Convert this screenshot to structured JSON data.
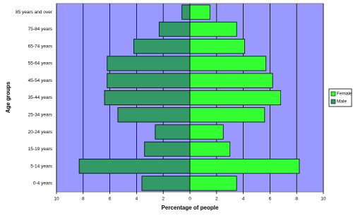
{
  "chart_data": {
    "type": "pyramid",
    "y_label": "Age groups",
    "x_label": "Percentage of people",
    "categories": [
      "85 years and over",
      "75-84 years",
      "65-74 years",
      "55-64 years",
      "45-54 years",
      "35-44 years",
      "25-34 years",
      "20-24 years",
      "15-19 years",
      "5-14 years",
      "0-4 years"
    ],
    "series": [
      {
        "name": "Male",
        "color": "#339966",
        "values": [
          -0.6,
          -2.3,
          -4.2,
          -6.2,
          -6.2,
          -6.4,
          -5.4,
          -2.6,
          -3.4,
          -8.3,
          -3.6
        ]
      },
      {
        "name": "Female",
        "color": "#33ff33",
        "values": [
          1.5,
          3.5,
          4.1,
          5.7,
          6.2,
          6.8,
          5.6,
          2.5,
          3.0,
          8.2,
          3.5
        ]
      }
    ],
    "xlim": [
      -10,
      10
    ],
    "xticks": [
      {
        "value": -10,
        "label": "10"
      },
      {
        "value": -8,
        "label": "8"
      },
      {
        "value": -6,
        "label": "6"
      },
      {
        "value": -4,
        "label": "4"
      },
      {
        "value": -2,
        "label": "2"
      },
      0,
      2,
      4,
      6,
      8,
      10
    ],
    "grid": true,
    "legend": "right"
  }
}
